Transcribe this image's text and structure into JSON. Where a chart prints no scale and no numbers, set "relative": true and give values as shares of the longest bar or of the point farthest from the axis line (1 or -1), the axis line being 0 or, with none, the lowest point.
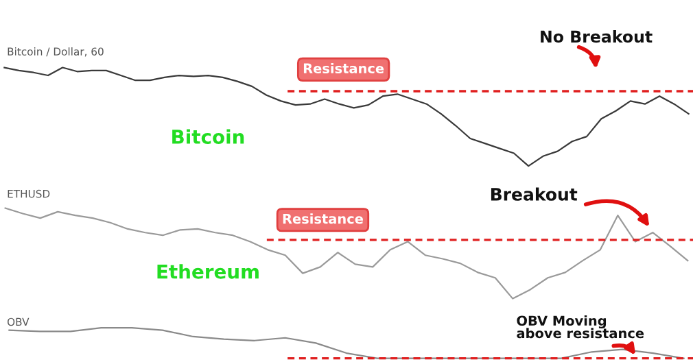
{
  "chart_data": [
    {
      "type": "line",
      "title": "Bitcoin / Dollar, 60",
      "relative": true,
      "categories": [
        null,
        null,
        null,
        null,
        null,
        null,
        null,
        null,
        null,
        null,
        null,
        null,
        null,
        null,
        null,
        null,
        null,
        null,
        null,
        null,
        null,
        null,
        null,
        null,
        null,
        null,
        null,
        null,
        null,
        null,
        null,
        null,
        null,
        null,
        null,
        null,
        null,
        null,
        null,
        null,
        null,
        null,
        null,
        null,
        null,
        null,
        null,
        null
      ],
      "series": [
        {
          "color": "#3a3a3a",
          "values": [
            1.0,
            0.97,
            0.95,
            0.92,
            1.0,
            0.96,
            0.97,
            0.97,
            0.92,
            0.87,
            0.87,
            0.9,
            0.92,
            0.91,
            0.92,
            0.9,
            0.86,
            0.81,
            0.72,
            0.66,
            0.62,
            0.63,
            0.68,
            0.63,
            0.59,
            0.62,
            0.71,
            0.73,
            0.68,
            0.63,
            0.53,
            0.41,
            0.28,
            0.23,
            0.18,
            0.13,
            0.0,
            0.1,
            0.15,
            0.25,
            0.3,
            0.48,
            0.56,
            0.66,
            0.63,
            0.71,
            0.63,
            0.53
          ]
        }
      ],
      "ref_lines": [
        {
          "axis": "y",
          "value": 0.76,
          "label": "Resistance",
          "color": "#e02020",
          "line_style": "dashed"
        }
      ],
      "annotations": [
        "Bitcoin",
        "No Breakout"
      ]
    },
    {
      "type": "line",
      "title": "ETHUSD",
      "relative": true,
      "categories": [
        null,
        null,
        null,
        null,
        null,
        null,
        null,
        null,
        null,
        null,
        null,
        null,
        null,
        null,
        null,
        null,
        null,
        null,
        null,
        null,
        null,
        null,
        null,
        null,
        null,
        null,
        null,
        null,
        null,
        null,
        null,
        null,
        null,
        null,
        null,
        null,
        null,
        null,
        null,
        null
      ],
      "series": [
        {
          "color": "#9a9a9a",
          "values": [
            1.0,
            0.94,
            0.89,
            0.96,
            0.92,
            0.89,
            0.84,
            0.77,
            0.73,
            0.7,
            0.76,
            0.77,
            0.73,
            0.7,
            0.63,
            0.54,
            0.48,
            0.28,
            0.35,
            0.51,
            0.38,
            0.35,
            0.54,
            0.63,
            0.48,
            0.44,
            0.39,
            0.29,
            0.23,
            0.0,
            0.1,
            0.23,
            0.29,
            0.42,
            0.54,
            0.92,
            0.63,
            0.73,
            0.58,
            0.42
          ]
        }
      ],
      "ref_lines": [
        {
          "axis": "y",
          "value": 0.65,
          "label": "Resistance",
          "color": "#e02020",
          "line_style": "dashed"
        }
      ],
      "annotations": [
        "Ethereum",
        "Breakout"
      ]
    },
    {
      "type": "line",
      "title": "OBV",
      "relative": true,
      "categories": [
        null,
        null,
        null,
        null,
        null,
        null,
        null,
        null,
        null,
        null,
        null,
        null,
        null,
        null,
        null,
        null,
        null,
        null,
        null,
        null,
        null,
        null,
        null
      ],
      "series": [
        {
          "color": "#8a8a8a",
          "values": [
            0.92,
            0.88,
            0.88,
            1.0,
            1.0,
            0.92,
            0.71,
            0.63,
            0.58,
            0.67,
            0.5,
            0.17,
            0.0,
            0.0,
            0.0,
            0.0,
            0.0,
            0.0,
            0.0,
            0.21,
            0.29,
            0.17,
            0.0
          ]
        }
      ],
      "ref_lines": [
        {
          "axis": "y",
          "value": 0.0,
          "label": null,
          "color": "#e02020",
          "line_style": "dashed"
        }
      ],
      "annotations": [
        "OBV Moving\nabove resistance"
      ]
    }
  ]
}
